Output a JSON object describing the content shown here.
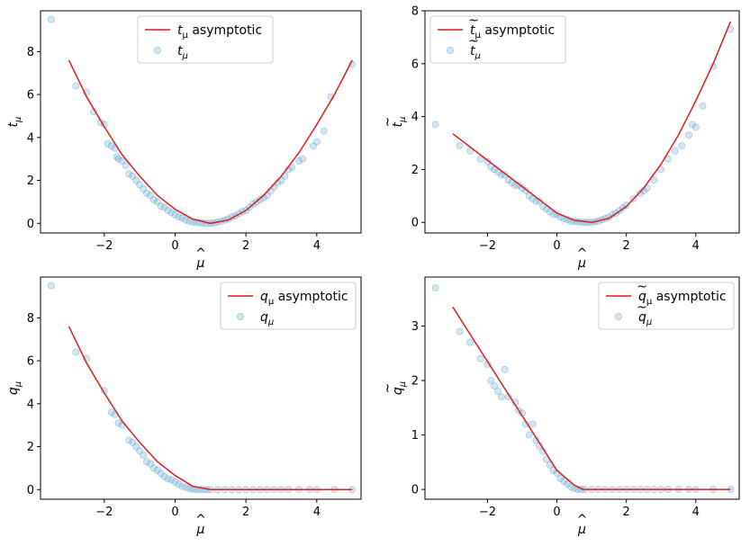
{
  "colors": {
    "curve": "#e41a1c",
    "points": "#6baed6",
    "points_edge": "#3182bd"
  },
  "chart_data": [
    {
      "type": "scatter",
      "panel": "top-left",
      "xlabel": "μ̂",
      "ylabel": "t_μ",
      "xlim": [
        -3.8,
        5.25
      ],
      "ylim": [
        -0.45,
        9.9
      ],
      "xticks": [
        -2,
        0,
        2,
        4
      ],
      "yticks": [
        0,
        2,
        4,
        6,
        8
      ],
      "legend": {
        "placement": "top-center",
        "curve_label": "t_μ asymptotic",
        "points_label": "t_μ"
      },
      "curve": {
        "name": "t_μ asymptotic",
        "x": [
          -3,
          -2.5,
          -2,
          -1.5,
          -1,
          -0.5,
          0,
          0.5,
          1,
          1.5,
          2,
          2.5,
          3,
          3.5,
          4,
          4.5,
          5
        ],
        "y": [
          7.6,
          5.9,
          4.5,
          3.2,
          2.2,
          1.3,
          0.65,
          0.2,
          0.0,
          0.15,
          0.6,
          1.3,
          2.2,
          3.3,
          4.6,
          6.0,
          7.6
        ]
      },
      "points": {
        "name": "t_μ",
        "x": [
          -3.5,
          -2.8,
          -2.5,
          -2.3,
          -2.1,
          -2.0,
          -1.9,
          -1.8,
          -1.7,
          -1.65,
          -1.6,
          -1.5,
          -1.4,
          -1.3,
          -1.2,
          -1.1,
          -1.0,
          -0.9,
          -0.8,
          -0.7,
          -0.6,
          -0.5,
          -0.4,
          -0.3,
          -0.2,
          -0.1,
          0.0,
          0.1,
          0.2,
          0.3,
          0.4,
          0.5,
          0.6,
          0.7,
          0.8,
          0.9,
          1.0,
          1.1,
          1.2,
          1.3,
          1.4,
          1.5,
          1.6,
          1.7,
          1.8,
          1.9,
          2.0,
          2.1,
          2.2,
          2.3,
          2.4,
          2.5,
          2.6,
          2.7,
          2.8,
          2.9,
          3.0,
          3.1,
          3.2,
          3.3,
          3.5,
          3.6,
          3.9,
          4.0,
          4.2,
          4.4,
          5.0
        ],
        "y": [
          9.5,
          6.4,
          6.1,
          5.2,
          4.7,
          4.6,
          3.7,
          3.6,
          3.5,
          3.1,
          3.0,
          2.9,
          2.7,
          2.3,
          2.2,
          2.0,
          1.8,
          1.6,
          1.4,
          1.3,
          1.1,
          1.0,
          0.8,
          0.75,
          0.6,
          0.5,
          0.4,
          0.3,
          0.25,
          0.15,
          0.1,
          0.05,
          0.05,
          0.02,
          0.01,
          0.0,
          0.0,
          0.02,
          0.05,
          0.1,
          0.15,
          0.2,
          0.3,
          0.35,
          0.45,
          0.55,
          0.6,
          0.75,
          0.9,
          1.0,
          1.1,
          1.2,
          1.3,
          1.5,
          1.7,
          1.9,
          2.0,
          2.2,
          2.5,
          2.6,
          2.9,
          3.0,
          3.6,
          3.8,
          4.3,
          5.9,
          7.4
        ]
      }
    },
    {
      "type": "scatter",
      "panel": "top-right",
      "xlabel": "μ̂",
      "ylabel": "t̃_μ",
      "xlim": [
        -3.8,
        5.25
      ],
      "ylim": [
        -0.4,
        8.0
      ],
      "xticks": [
        -2,
        0,
        2,
        4
      ],
      "yticks": [
        0,
        2,
        4,
        6,
        8
      ],
      "legend": {
        "placement": "top-left",
        "curve_label": "t̃_μ asymptotic",
        "points_label": "t̃_μ"
      },
      "curve": {
        "name": "t̃_μ asymptotic",
        "x": [
          -3,
          -2.5,
          -2,
          -1.5,
          -1,
          -0.5,
          0,
          0.5,
          1,
          1.5,
          2,
          2.5,
          3,
          3.5,
          4,
          4.5,
          5
        ],
        "y": [
          3.35,
          2.85,
          2.35,
          1.85,
          1.35,
          0.85,
          0.35,
          0.08,
          0.0,
          0.15,
          0.6,
          1.3,
          2.2,
          3.3,
          4.6,
          6.0,
          7.6
        ]
      },
      "points": {
        "name": "t̃_μ",
        "x": [
          -3.5,
          -2.8,
          -2.5,
          -2.2,
          -2.0,
          -1.9,
          -1.8,
          -1.7,
          -1.6,
          -1.5,
          -1.4,
          -1.3,
          -1.2,
          -1.1,
          -1.0,
          -0.9,
          -0.8,
          -0.7,
          -0.6,
          -0.5,
          -0.4,
          -0.3,
          -0.2,
          -0.1,
          0.0,
          0.1,
          0.2,
          0.3,
          0.4,
          0.5,
          0.6,
          0.7,
          0.8,
          0.9,
          1.0,
          1.1,
          1.2,
          1.3,
          1.4,
          1.5,
          1.6,
          1.7,
          1.8,
          1.9,
          2.0,
          2.2,
          2.4,
          2.5,
          2.6,
          2.8,
          3.0,
          3.2,
          3.4,
          3.6,
          3.8,
          3.9,
          4.0,
          4.2,
          4.5,
          5.0
        ],
        "y": [
          3.7,
          2.9,
          2.7,
          2.4,
          2.3,
          2.1,
          2.0,
          1.9,
          1.8,
          1.8,
          1.6,
          1.5,
          1.4,
          1.4,
          1.3,
          1.2,
          1.0,
          0.9,
          0.8,
          0.8,
          0.6,
          0.5,
          0.4,
          0.3,
          0.3,
          0.2,
          0.15,
          0.1,
          0.05,
          0.04,
          0.02,
          0.01,
          0.0,
          0.0,
          0.0,
          0.02,
          0.05,
          0.1,
          0.15,
          0.2,
          0.3,
          0.35,
          0.45,
          0.55,
          0.65,
          0.9,
          1.1,
          1.2,
          1.3,
          1.6,
          2.0,
          2.4,
          2.7,
          2.9,
          3.3,
          3.7,
          3.6,
          4.4,
          5.9,
          7.3
        ]
      }
    },
    {
      "type": "scatter",
      "panel": "bottom-left",
      "xlabel": "μ̂",
      "ylabel": "q_μ",
      "xlim": [
        -3.8,
        5.25
      ],
      "ylim": [
        -0.45,
        9.9
      ],
      "xticks": [
        -2,
        0,
        2,
        4
      ],
      "yticks": [
        0,
        2,
        4,
        6,
        8
      ],
      "legend": {
        "placement": "top-right",
        "curve_label": "q_μ asymptotic",
        "points_label": "q_μ"
      },
      "curve": {
        "name": "q_μ asymptotic",
        "x": [
          -3,
          -2.5,
          -2,
          -1.5,
          -1,
          -0.5,
          0,
          0.5,
          1,
          1.5,
          2,
          2.5,
          3,
          3.5,
          4,
          4.5,
          5
        ],
        "y": [
          7.6,
          5.9,
          4.5,
          3.2,
          2.2,
          1.3,
          0.65,
          0.15,
          0.0,
          0.0,
          0.0,
          0.0,
          0.0,
          0.0,
          0.0,
          0.0,
          0.0
        ]
      },
      "points": {
        "name": "q_μ",
        "x": [
          -3.5,
          -2.8,
          -2.5,
          -2.0,
          -1.8,
          -1.7,
          -1.6,
          -1.5,
          -1.3,
          -1.2,
          -1.1,
          -1.0,
          -0.9,
          -0.8,
          -0.7,
          -0.6,
          -0.5,
          -0.4,
          -0.3,
          -0.2,
          -0.1,
          0.0,
          0.1,
          0.2,
          0.3,
          0.4,
          0.5,
          0.6,
          0.7,
          0.8,
          0.9,
          1.0,
          1.2,
          1.4,
          1.6,
          1.8,
          2.0,
          2.2,
          2.4,
          2.6,
          2.8,
          3.0,
          3.2,
          3.5,
          3.8,
          4.0,
          4.5,
          5.0
        ],
        "y": [
          9.5,
          6.4,
          6.1,
          4.6,
          3.6,
          3.5,
          3.1,
          3.0,
          2.3,
          2.2,
          2.0,
          1.8,
          1.6,
          1.3,
          1.2,
          1.0,
          0.9,
          0.75,
          0.6,
          0.5,
          0.45,
          0.35,
          0.25,
          0.15,
          0.1,
          0.05,
          0.02,
          0.0,
          0.0,
          0.0,
          0.0,
          0.0,
          0.0,
          0.0,
          0.0,
          0.0,
          0.0,
          0.0,
          0.0,
          0.0,
          0.0,
          0.0,
          0.0,
          0.0,
          0.0,
          0.0,
          0.0,
          0.0
        ]
      }
    },
    {
      "type": "scatter",
      "panel": "bottom-right",
      "xlabel": "μ̂",
      "ylabel": "q̃_μ",
      "xlim": [
        -3.8,
        5.25
      ],
      "ylim": [
        -0.18,
        3.9
      ],
      "xticks": [
        -2,
        0,
        2,
        4
      ],
      "yticks": [
        0,
        1,
        2,
        3
      ],
      "legend": {
        "placement": "top-right",
        "curve_label": "q̃_μ asymptotic",
        "points_label": "q̃_μ"
      },
      "curve": {
        "name": "q̃_μ asymptotic",
        "x": [
          -3,
          -2.5,
          -2,
          -1.5,
          -1,
          -0.5,
          0,
          0.5,
          0.75,
          1,
          1.5,
          2,
          2.5,
          3,
          3.5,
          4,
          4.5,
          5
        ],
        "y": [
          3.35,
          2.85,
          2.35,
          1.85,
          1.35,
          0.85,
          0.35,
          0.08,
          0.0,
          0.0,
          0.0,
          0.0,
          0.0,
          0.0,
          0.0,
          0.0,
          0.0,
          0.0
        ]
      },
      "points": {
        "name": "q̃_μ",
        "x": [
          -3.5,
          -2.8,
          -2.5,
          -2.2,
          -2.0,
          -1.9,
          -1.8,
          -1.7,
          -1.6,
          -1.5,
          -1.4,
          -1.2,
          -1.1,
          -1.0,
          -0.9,
          -0.8,
          -0.7,
          -0.6,
          -0.5,
          -0.4,
          -0.3,
          -0.2,
          -0.1,
          0.0,
          0.1,
          0.2,
          0.3,
          0.4,
          0.5,
          0.6,
          0.7,
          0.8,
          1.0,
          1.2,
          1.4,
          1.6,
          1.8,
          2.0,
          2.2,
          2.4,
          2.6,
          2.8,
          3.0,
          3.2,
          3.5,
          3.8,
          4.0,
          4.5,
          5.0
        ],
        "y": [
          3.7,
          2.9,
          2.7,
          2.4,
          2.3,
          2.0,
          1.9,
          1.8,
          1.7,
          2.2,
          1.7,
          1.6,
          1.45,
          1.4,
          1.2,
          1.0,
          1.2,
          0.9,
          0.8,
          0.7,
          0.55,
          0.45,
          0.35,
          0.3,
          0.2,
          0.15,
          0.1,
          0.05,
          0.02,
          0.0,
          0.0,
          0.0,
          0.0,
          0.0,
          0.0,
          0.0,
          0.0,
          0.0,
          0.0,
          0.0,
          0.0,
          0.0,
          0.0,
          0.0,
          0.0,
          0.0,
          0.0,
          0.0,
          0.0
        ]
      }
    }
  ]
}
